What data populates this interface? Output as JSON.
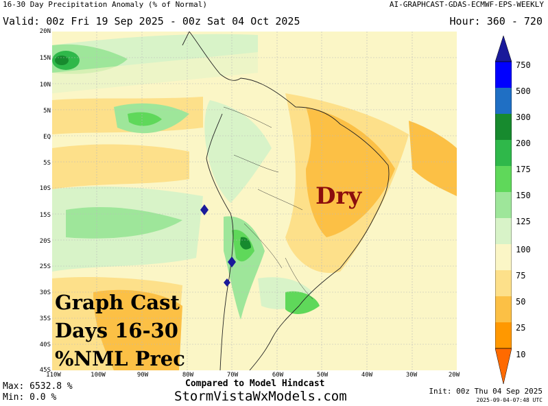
{
  "header": {
    "title": "16-30 Day Precipitation Anomaly (% of Normal)",
    "product": "AI-GRAPHCAST-GDAS-ECMWF-EPS-WEEKLY",
    "valid": "Valid: 00z Fri 19 Sep 2025 - 00z Sat 04 Oct 2025",
    "hour": "Hour: 360 - 720"
  },
  "map": {
    "lat_labels": [
      "20N",
      "15N",
      "10N",
      "5N",
      "EQ",
      "5S",
      "10S",
      "15S",
      "20S",
      "25S",
      "30S",
      "35S",
      "40S",
      "45S"
    ],
    "lon_labels": [
      "110W",
      "100W",
      "90W",
      "80W",
      "70W",
      "60W",
      "50W",
      "40W",
      "30W",
      "20W"
    ]
  },
  "annotations": {
    "dry": "Dry",
    "graph_cast_line1": "Graph Cast",
    "graph_cast_line2": "Days 16-30",
    "graph_cast_line3": "%NML Prec"
  },
  "colorbar": {
    "labels": [
      "750",
      "500",
      "300",
      "200",
      "175",
      "150",
      "125",
      "100",
      "75",
      "50",
      "25",
      "10"
    ],
    "colors": [
      "#1a1a9a",
      "#0000ff",
      "#1f6fc4",
      "#178a2e",
      "#2fb84a",
      "#5fd85a",
      "#9ee69a",
      "#d8f3c8",
      "#fbf6c6",
      "#fde08a",
      "#fcc045",
      "#ff9800",
      "#ff6a00"
    ]
  },
  "footer": {
    "max": "Max: 6532.8 %",
    "min": "Min: 0.0 %",
    "compared": "Compared to Model Hindcast",
    "site": "StormVistaWxModels.com",
    "init": "Init: 00z Thu 04 Sep 2025",
    "timestamp": "2025-09-04-07:48 UTC"
  }
}
